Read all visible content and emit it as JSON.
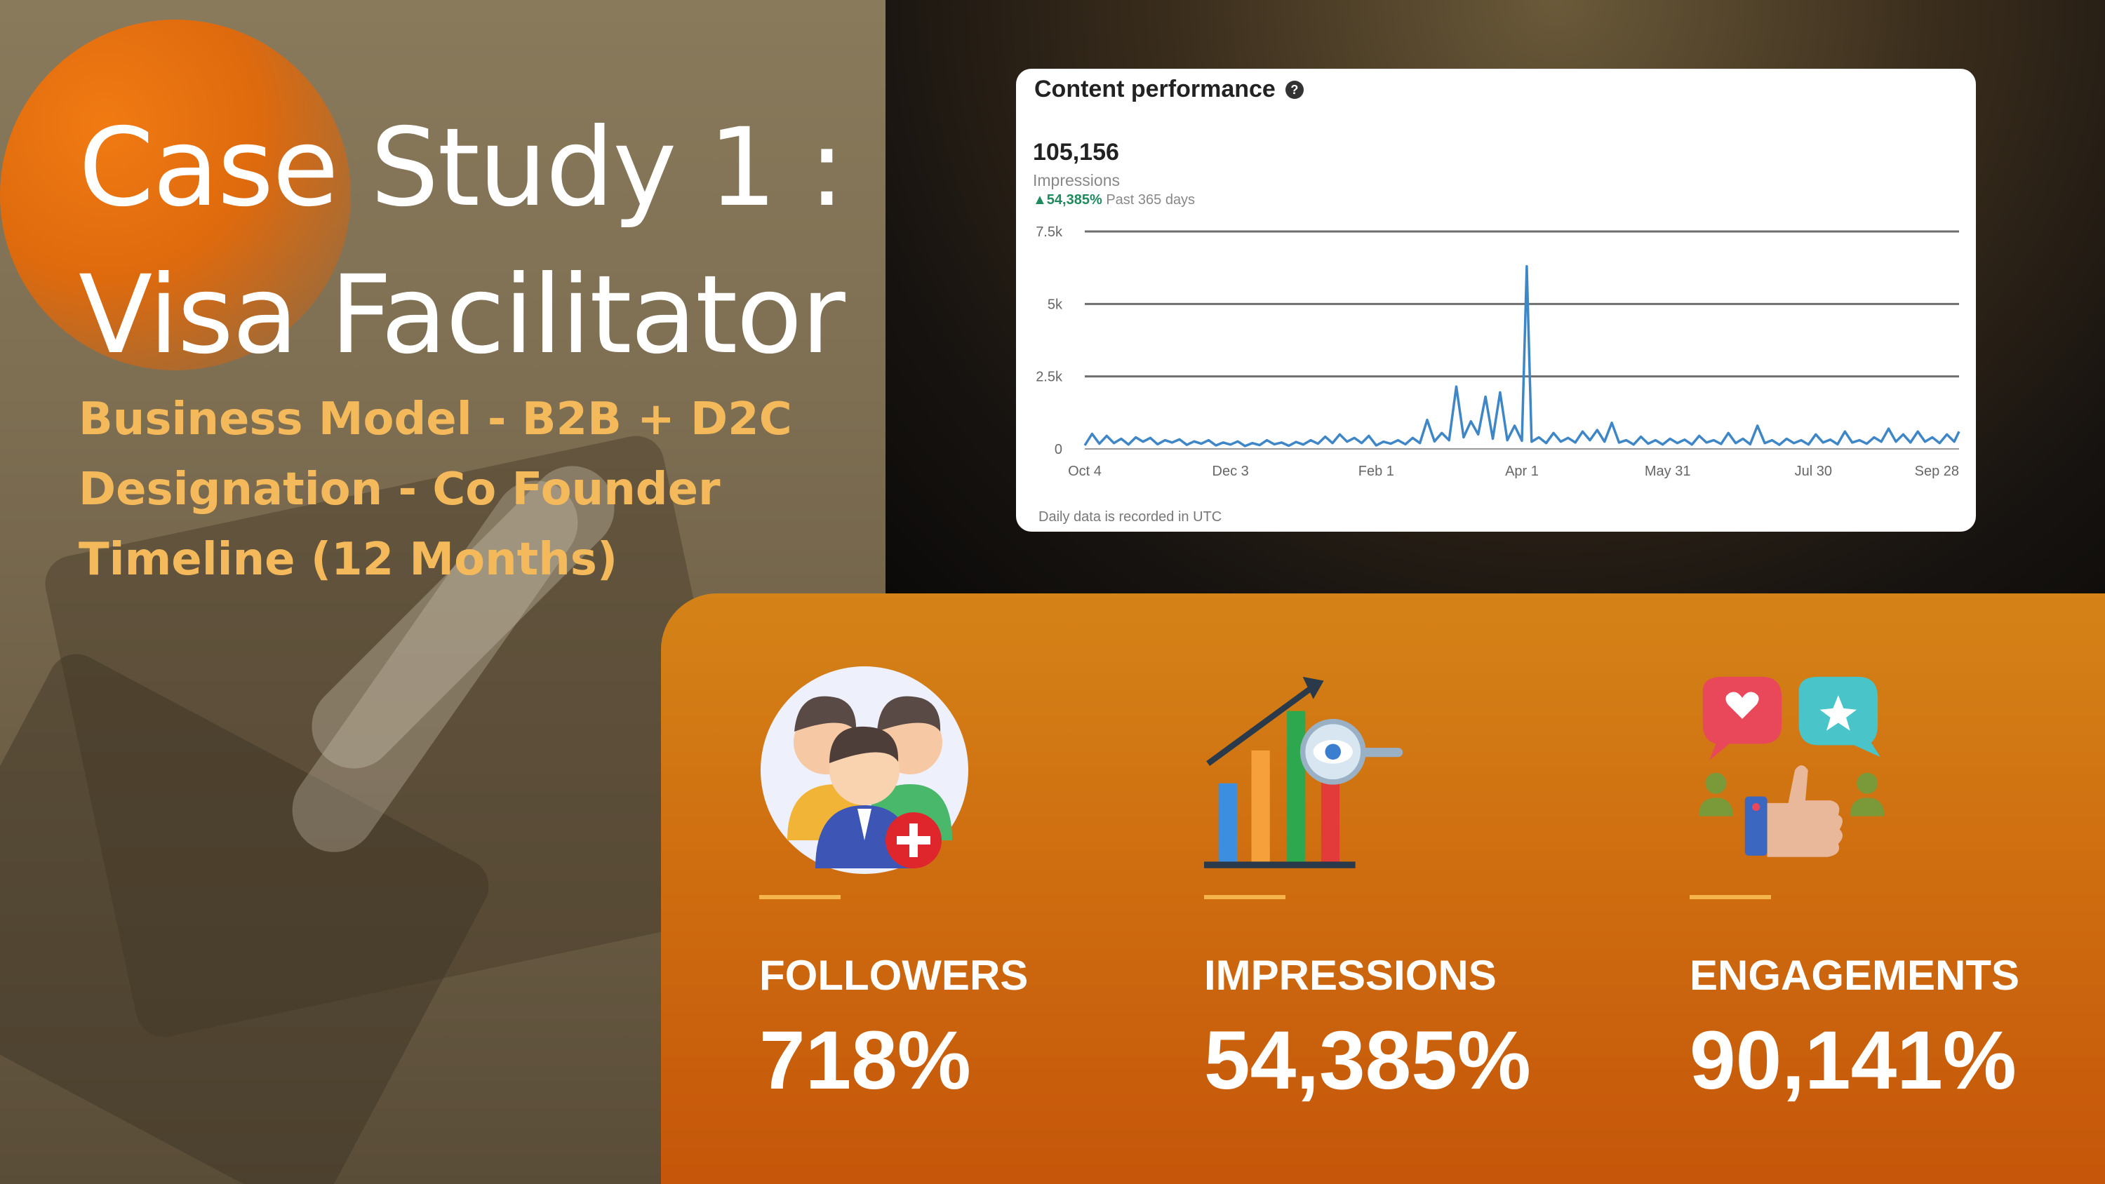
{
  "title": {
    "line1": "Case Study 1 :",
    "line2": "Visa Facilitator"
  },
  "details": [
    "Business Model - B2B + D2C",
    "Designation - Co Founder",
    "Timeline (12 Months)"
  ],
  "card": {
    "title": "Content performance",
    "help_icon": "question-circle-icon",
    "value": "105,156",
    "value_label": "Impressions",
    "change": "▲54,385%",
    "change_period": "Past 365 days",
    "footnote": "Daily data is recorded in UTC"
  },
  "chart_data": {
    "type": "line",
    "title": "Content performance",
    "xlabel": "",
    "ylabel": "",
    "x_tick_labels": [
      "Oct 4",
      "Dec 3",
      "Feb 1",
      "Apr 1",
      "May 31",
      "Jul 30",
      "Sep 28"
    ],
    "y_tick_labels": [
      "7.5k",
      "5k",
      "2.5k",
      "0"
    ],
    "y_ticks": [
      7500,
      5000,
      2500,
      0
    ],
    "ylim": [
      0,
      7500
    ],
    "xlim": [
      0,
      360
    ],
    "grid": true,
    "series": [
      {
        "color": "#3f86c6",
        "points": [
          [
            0,
            120
          ],
          [
            3,
            520
          ],
          [
            6,
            180
          ],
          [
            9,
            450
          ],
          [
            12,
            200
          ],
          [
            15,
            350
          ],
          [
            18,
            150
          ],
          [
            21,
            400
          ],
          [
            24,
            250
          ],
          [
            27,
            380
          ],
          [
            30,
            160
          ],
          [
            33,
            300
          ],
          [
            36,
            220
          ],
          [
            39,
            330
          ],
          [
            42,
            140
          ],
          [
            45,
            260
          ],
          [
            48,
            180
          ],
          [
            51,
            300
          ],
          [
            54,
            120
          ],
          [
            57,
            220
          ],
          [
            60,
            150
          ],
          [
            63,
            260
          ],
          [
            66,
            100
          ],
          [
            69,
            200
          ],
          [
            72,
            130
          ],
          [
            75,
            300
          ],
          [
            78,
            160
          ],
          [
            81,
            220
          ],
          [
            84,
            110
          ],
          [
            87,
            240
          ],
          [
            90,
            150
          ],
          [
            93,
            300
          ],
          [
            96,
            180
          ],
          [
            99,
            420
          ],
          [
            102,
            200
          ],
          [
            105,
            500
          ],
          [
            108,
            250
          ],
          [
            111,
            380
          ],
          [
            114,
            200
          ],
          [
            117,
            450
          ],
          [
            120,
            120
          ],
          [
            123,
            250
          ],
          [
            126,
            180
          ],
          [
            129,
            300
          ],
          [
            132,
            160
          ],
          [
            135,
            380
          ],
          [
            138,
            200
          ],
          [
            141,
            1000
          ],
          [
            144,
            260
          ],
          [
            147,
            550
          ],
          [
            150,
            300
          ],
          [
            153,
            2150
          ],
          [
            156,
            400
          ],
          [
            159,
            950
          ],
          [
            162,
            500
          ],
          [
            165,
            1800
          ],
          [
            168,
            350
          ],
          [
            171,
            1950
          ],
          [
            174,
            300
          ],
          [
            177,
            800
          ],
          [
            180,
            280
          ],
          [
            182,
            6300
          ],
          [
            184,
            250
          ],
          [
            187,
            400
          ],
          [
            190,
            200
          ],
          [
            193,
            550
          ],
          [
            196,
            250
          ],
          [
            199,
            380
          ],
          [
            202,
            220
          ],
          [
            205,
            600
          ],
          [
            208,
            300
          ],
          [
            211,
            650
          ],
          [
            214,
            250
          ],
          [
            217,
            900
          ],
          [
            220,
            220
          ],
          [
            223,
            300
          ],
          [
            226,
            150
          ],
          [
            229,
            420
          ],
          [
            232,
            180
          ],
          [
            235,
            300
          ],
          [
            238,
            150
          ],
          [
            241,
            350
          ],
          [
            244,
            200
          ],
          [
            247,
            320
          ],
          [
            250,
            150
          ],
          [
            253,
            450
          ],
          [
            256,
            220
          ],
          [
            259,
            300
          ],
          [
            262,
            170
          ],
          [
            265,
            550
          ],
          [
            268,
            200
          ],
          [
            271,
            350
          ],
          [
            274,
            160
          ],
          [
            277,
            800
          ],
          [
            280,
            200
          ],
          [
            283,
            300
          ],
          [
            286,
            140
          ],
          [
            289,
            350
          ],
          [
            292,
            200
          ],
          [
            295,
            300
          ],
          [
            298,
            150
          ],
          [
            301,
            500
          ],
          [
            304,
            220
          ],
          [
            307,
            320
          ],
          [
            310,
            160
          ],
          [
            313,
            600
          ],
          [
            316,
            220
          ],
          [
            319,
            300
          ],
          [
            322,
            180
          ],
          [
            325,
            400
          ],
          [
            328,
            250
          ],
          [
            331,
            700
          ],
          [
            334,
            250
          ],
          [
            337,
            500
          ],
          [
            340,
            220
          ],
          [
            343,
            600
          ],
          [
            346,
            250
          ],
          [
            349,
            400
          ],
          [
            352,
            200
          ],
          [
            355,
            500
          ],
          [
            358,
            250
          ],
          [
            360,
            600
          ]
        ]
      }
    ]
  },
  "stats": [
    {
      "icon": "followers-group-icon",
      "label": "FOLLOWERS",
      "value": "718%"
    },
    {
      "icon": "impressions-chart-icon",
      "label": "IMPRESSIONS",
      "value": "54,385%"
    },
    {
      "icon": "engagements-reactions-icon",
      "label": "ENGAGEMENTS",
      "value": "90,141%"
    }
  ],
  "colors": {
    "title": "#ffffff",
    "details": "#f4b95a",
    "accent_orange": "#d4731a",
    "accent_bar": "#f6b54a",
    "chart_line": "#3f86c6",
    "positive": "#1f8a5e"
  }
}
